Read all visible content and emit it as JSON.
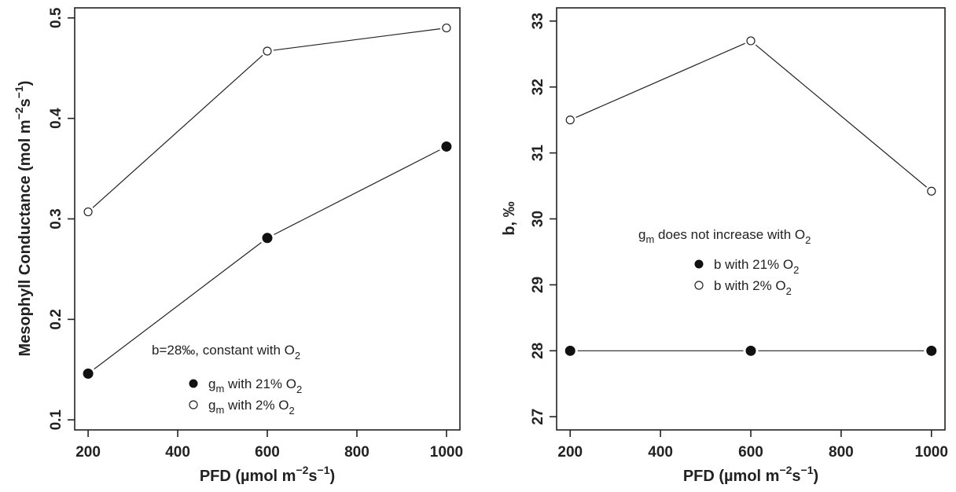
{
  "chart_data": [
    {
      "type": "line",
      "xlabel": "PFD (µmol m",
      "xlabel_sup1": "−2",
      "xlabel_mid": "s",
      "xlabel_sup2": "−1",
      "xlabel_end": ")",
      "ylabel": "Mesophyll Conductance (mol m",
      "ylabel_sup1": "−2",
      "ylabel_mid": "s",
      "ylabel_sup2": "−1",
      "ylabel_end": ")",
      "xlim": [
        170,
        1030
      ],
      "ylim": [
        0.09,
        0.51
      ],
      "xticks": [
        200,
        400,
        600,
        800,
        1000
      ],
      "yticks": [
        "0.1",
        "0.2",
        "0.3",
        "0.4",
        "0.5"
      ],
      "x": [
        200,
        600,
        1000
      ],
      "series": [
        {
          "name": "gm with 21% O2",
          "marker": "filled",
          "values": [
            0.146,
            0.281,
            0.372
          ]
        },
        {
          "name": "gm with 2% O2",
          "marker": "open",
          "values": [
            0.307,
            0.467,
            0.49
          ]
        }
      ],
      "legend": {
        "title": "b=28‰, constant with O",
        "title_sub": "2",
        "entries": [
          {
            "pre": "g",
            "pre_sub": "m",
            "text": " with 21% O",
            "sub": "2"
          },
          {
            "pre": "g",
            "pre_sub": "m",
            "text": " with 2% O",
            "sub": "2"
          }
        ]
      }
    },
    {
      "type": "line",
      "xlabel": "PFD (µmol m",
      "xlabel_sup1": "−2",
      "xlabel_mid": "s",
      "xlabel_sup2": "−1",
      "xlabel_end": ")",
      "ylabel": "b, ‰",
      "xlim": [
        170,
        1030
      ],
      "ylim": [
        26.8,
        33.2
      ],
      "xticks": [
        200,
        400,
        600,
        800,
        1000
      ],
      "yticks": [
        "27",
        "28",
        "29",
        "30",
        "31",
        "32",
        "33"
      ],
      "x": [
        200,
        600,
        1000
      ],
      "series": [
        {
          "name": "b with 21% O2",
          "marker": "filled",
          "values": [
            28.0,
            28.0,
            28.0
          ]
        },
        {
          "name": "b with 2% O2",
          "marker": "open",
          "values": [
            31.5,
            32.7,
            30.42
          ]
        }
      ],
      "legend": {
        "title_pre": "g",
        "title_pre_sub": "m",
        "title": " does not increase with O",
        "title_sub": "2",
        "entries": [
          {
            "text": "b with 21% O",
            "sub": "2"
          },
          {
            "text": "b with 2% O",
            "sub": "2"
          }
        ]
      }
    }
  ]
}
